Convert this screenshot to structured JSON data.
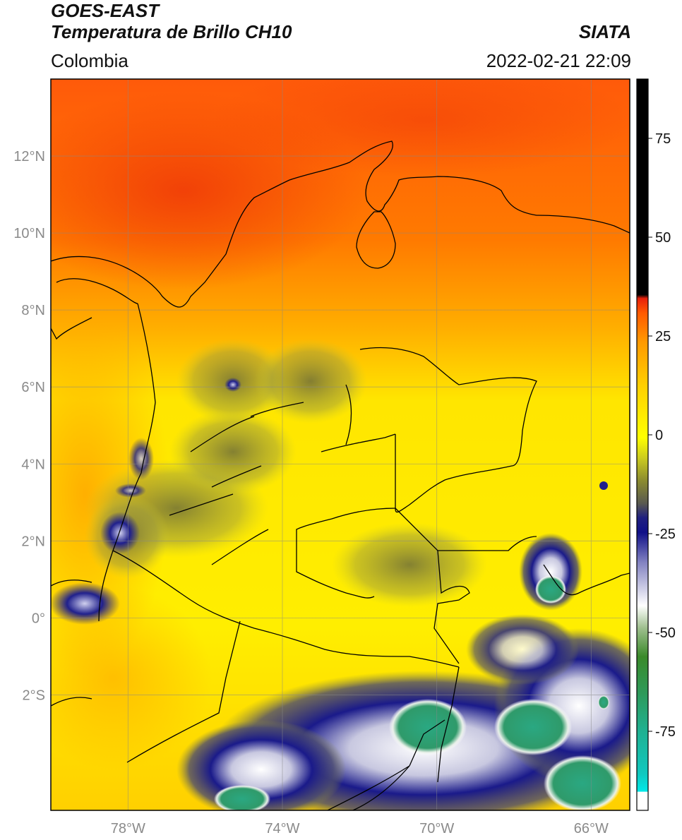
{
  "header": {
    "satellite": "GOES-EAST",
    "product": "Temperatura de Brillo CH10",
    "organization": "SIATA",
    "region": "Colombia",
    "datetime": "2022-02-21 22:09"
  },
  "map": {
    "lon_range": [
      -80,
      -65
    ],
    "lat_range": [
      -5,
      14
    ],
    "lat_ticks": [
      {
        "value": 12,
        "label": "12°N"
      },
      {
        "value": 10,
        "label": "10°N"
      },
      {
        "value": 8,
        "label": "8°N"
      },
      {
        "value": 6,
        "label": "6°N"
      },
      {
        "value": 4,
        "label": "4°N"
      },
      {
        "value": 2,
        "label": "2°N"
      },
      {
        "value": 0,
        "label": "0°"
      },
      {
        "value": -2,
        "label": "2°S"
      }
    ],
    "lon_ticks": [
      {
        "value": -78,
        "label": "78°W"
      },
      {
        "value": -74,
        "label": "74°W"
      },
      {
        "value": -70,
        "label": "70°W"
      },
      {
        "value": -66,
        "label": "66°W"
      }
    ],
    "grid": true
  },
  "colorbar": {
    "range": [
      -95,
      90
    ],
    "ticks": [
      {
        "value": 75,
        "label": "75"
      },
      {
        "value": 50,
        "label": "50"
      },
      {
        "value": 25,
        "label": "25"
      },
      {
        "value": 0,
        "label": "0"
      },
      {
        "value": -25,
        "label": "-25"
      },
      {
        "value": -50,
        "label": "-50"
      },
      {
        "value": -75,
        "label": "-75"
      }
    ],
    "colors": {
      "black": "#000000",
      "red": "#e8200a",
      "orange": "#ff8c00",
      "yellow": "#ffff00",
      "olive": "#7a7a30",
      "navy": "#101088",
      "white": "#ffffff",
      "green": "#2e8b2e",
      "teal": "#20b090",
      "cyan": "#00e0e0"
    }
  }
}
